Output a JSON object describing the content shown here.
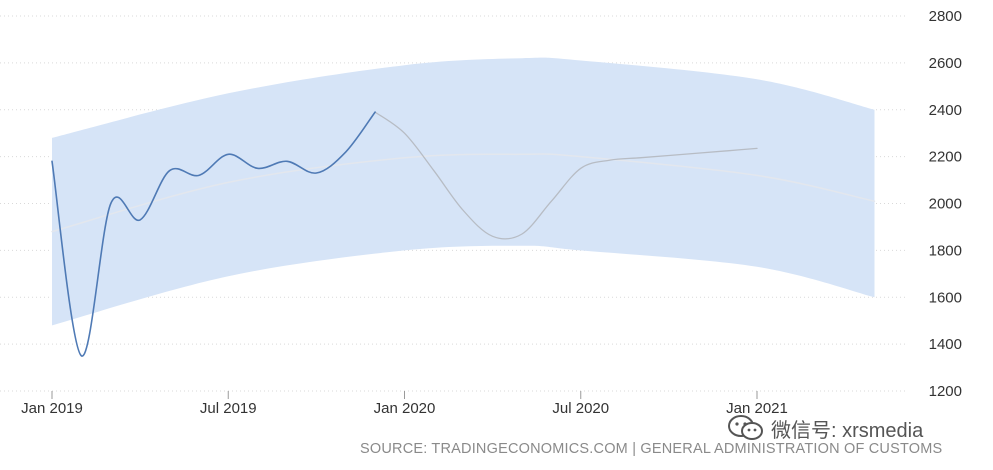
{
  "chart_data": {
    "type": "line",
    "title": "",
    "xlabel": "",
    "ylabel": "",
    "x_tick_labels": [
      "Jan 2019",
      "Jul 2019",
      "Jan 2020",
      "Jul 2020",
      "Jan 2021"
    ],
    "x_tick_dates": [
      "2019-01",
      "2019-07",
      "2020-01",
      "2020-07",
      "2021-01"
    ],
    "ylim": [
      1200,
      2800
    ],
    "y_ticks": [
      1200,
      1400,
      1600,
      1800,
      2000,
      2200,
      2400,
      2600,
      2800
    ],
    "y_axis_side": "right",
    "grid": "horizontal dotted",
    "series": [
      {
        "role": "actual",
        "color": "#4f7ab5",
        "points": [
          [
            "2019-01",
            2180
          ],
          [
            "2019-02",
            1350
          ],
          [
            "2019-03",
            2000
          ],
          [
            "2019-04",
            1930
          ],
          [
            "2019-05",
            2140
          ],
          [
            "2019-06",
            2120
          ],
          [
            "2019-07",
            2210
          ],
          [
            "2019-08",
            2150
          ],
          [
            "2019-09",
            2180
          ],
          [
            "2019-10",
            2130
          ],
          [
            "2019-11",
            2220
          ],
          [
            "2019-12",
            2390
          ]
        ]
      },
      {
        "role": "forecast",
        "color": "#b7bcc4",
        "points": [
          [
            "2019-12",
            2390
          ],
          [
            "2020-01",
            2300
          ],
          [
            "2020-02",
            2140
          ],
          [
            "2020-03",
            1970
          ],
          [
            "2020-04",
            1860
          ],
          [
            "2020-05",
            1870
          ],
          [
            "2020-06",
            2010
          ],
          [
            "2020-07",
            2150
          ],
          [
            "2020-08",
            2185
          ],
          [
            "2020-09",
            2195
          ],
          [
            "2020-10",
            2205
          ],
          [
            "2020-11",
            2215
          ],
          [
            "2020-12",
            2225
          ],
          [
            "2021-01",
            2235
          ]
        ]
      },
      {
        "role": "trend",
        "color": "#e3e7ee",
        "points": [
          [
            "2019-01",
            1880
          ],
          [
            "2019-07",
            2090
          ],
          [
            "2020-01",
            2195
          ],
          [
            "2020-05",
            2210
          ],
          [
            "2020-07",
            2200
          ],
          [
            "2021-01",
            2120
          ],
          [
            "2021-05",
            2010
          ]
        ]
      }
    ],
    "confidence_band": {
      "color": "#d6e4f7",
      "upper": [
        [
          "2019-01",
          2280
        ],
        [
          "2019-07",
          2470
        ],
        [
          "2020-01",
          2590
        ],
        [
          "2020-05",
          2620
        ],
        [
          "2020-07",
          2610
        ],
        [
          "2021-01",
          2530
        ],
        [
          "2021-05",
          2400
        ]
      ],
      "lower": [
        [
          "2019-01",
          1480
        ],
        [
          "2019-07",
          1690
        ],
        [
          "2020-01",
          1800
        ],
        [
          "2020-05",
          1820
        ],
        [
          "2020-07",
          1800
        ],
        [
          "2021-01",
          1730
        ],
        [
          "2021-05",
          1600
        ]
      ]
    }
  },
  "source_text": "SOURCE: TRADINGECONOMICS.COM | GENERAL ADMINISTRATION OF CUSTOMS",
  "watermark": {
    "text": "微信号: xrsmedia",
    "icon": "wechat-icon"
  },
  "colors": {
    "grid": "#d9d9d9",
    "tick_text": "#333333",
    "source_text": "#8a8a8a"
  }
}
